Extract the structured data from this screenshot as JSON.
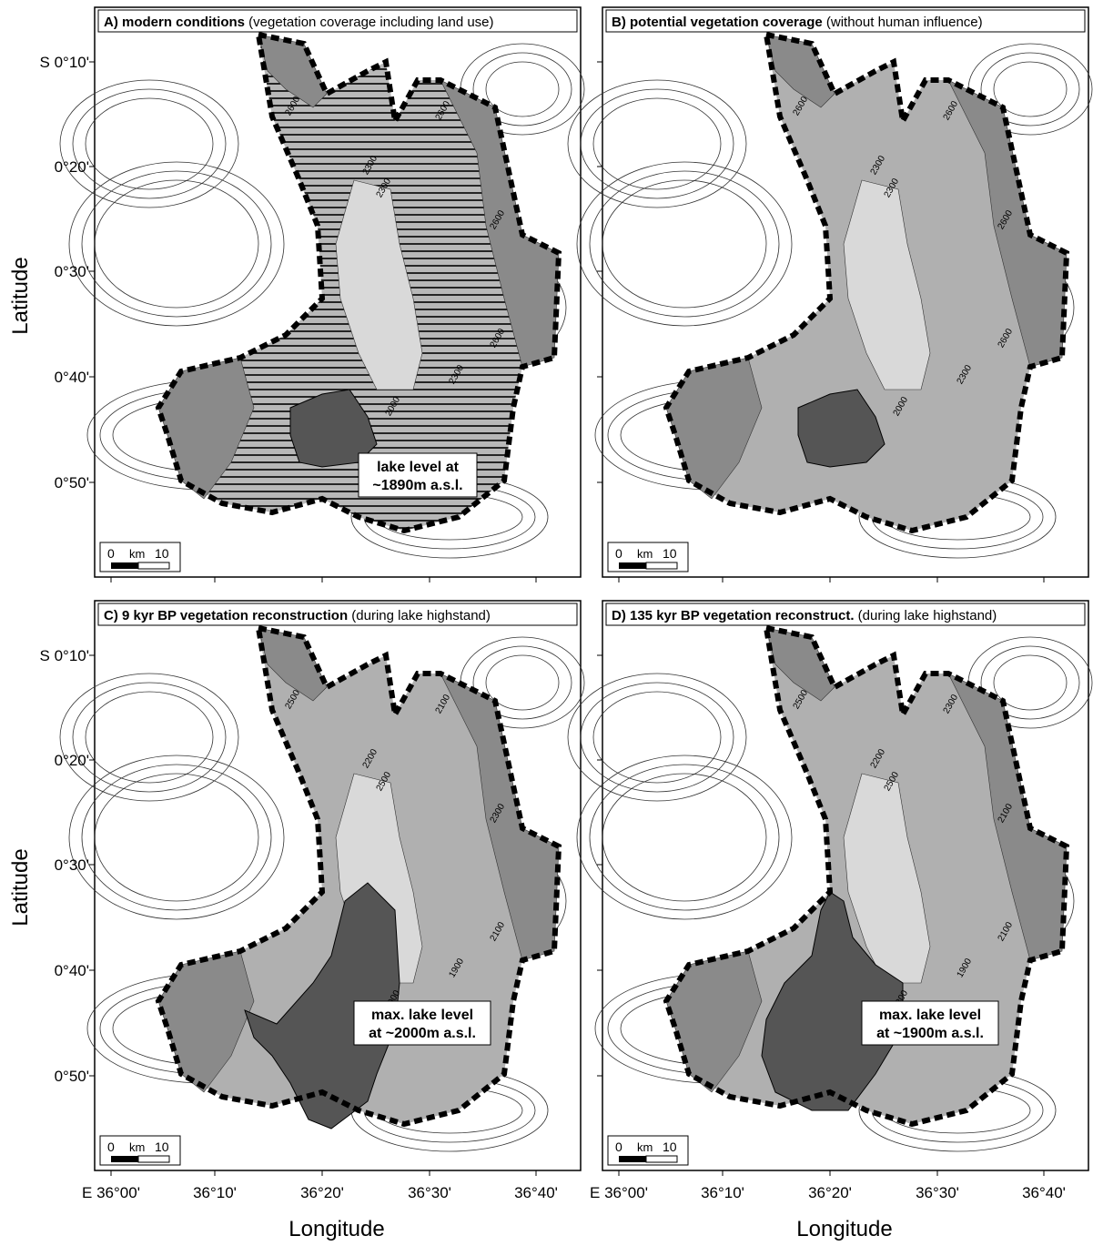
{
  "figure": {
    "axis_label_latitude": "Latitude",
    "axis_label_longitude": "Longitude",
    "lat_ticks": [
      "S 0°10'",
      "0°20'",
      "0°30'",
      "0°40'",
      "0°50'"
    ],
    "lon_ticks": [
      "E 36°00'",
      "36°10'",
      "36°20'",
      "36°30'",
      "36°40'"
    ],
    "scale_bar": {
      "zero": "0",
      "unit": "km",
      "ten": "10"
    },
    "colors": {
      "lake": "#555555",
      "zone_dark": "#8a8a8a",
      "zone_mid": "#b0b0b0",
      "zone_light": "#d9d9d9",
      "contour": "#333333",
      "boundary": "#000000"
    }
  },
  "panels": [
    {
      "title_bold": "A) modern conditions",
      "title_normal": " (vegetation coverage including land use)",
      "lake_label": [
        "lake level at",
        "~1890m a.s.l."
      ],
      "contour_labels": [
        "2600",
        "2300",
        "2300",
        "2600",
        "2600",
        "2300",
        "2000",
        "2600"
      ],
      "hatched": true
    },
    {
      "title_bold": "B) potential vegetation coverage",
      "title_normal": " (without human influence)",
      "lake_label": [],
      "contour_labels": [
        "2600",
        "2300",
        "2300",
        "2600",
        "2600",
        "2300",
        "2000",
        "2600"
      ],
      "hatched": false
    },
    {
      "title_bold": "C) 9 kyr BP vegetation reconstruction",
      "title_normal": " (during lake highstand)",
      "lake_label": [
        "max. lake level",
        "at ~2000m a.s.l."
      ],
      "contour_labels": [
        "2500",
        "2200",
        "2500",
        "2100",
        "2300",
        "1900",
        "2000",
        "2100"
      ],
      "hatched": false
    },
    {
      "title_bold": "D) 135 kyr BP vegetation reconstruct.",
      "title_normal": " (during lake highstand)",
      "lake_label": [
        "max. lake level",
        "at ~1900m a.s.l."
      ],
      "contour_labels": [
        "2500",
        "2200",
        "2500",
        "2300",
        "2100",
        "1900",
        "1800",
        "2100"
      ],
      "hatched": false
    }
  ]
}
